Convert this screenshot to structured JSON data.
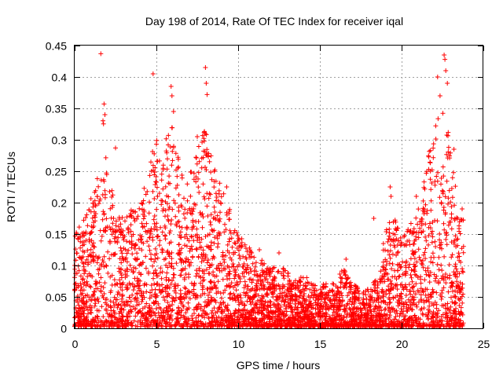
{
  "chart_data": {
    "type": "scatter",
    "title": "Day 198 of 2014, Rate Of TEC Index for receiver iqal",
    "xlabel": "GPS time / hours",
    "ylabel": "ROTI / TECUs",
    "xlim": [
      0,
      25
    ],
    "ylim": [
      0,
      0.45
    ],
    "xticks": [
      0,
      5,
      10,
      15,
      20,
      25
    ],
    "yticks": [
      0,
      0.05,
      0.1,
      0.15,
      0.2,
      0.25,
      0.3,
      0.35,
      0.4,
      0.45
    ],
    "xtick_labels": [
      "0",
      "5",
      "10",
      "15",
      "20",
      "25"
    ],
    "ytick_labels": [
      "0",
      "0.05",
      "0.1",
      "0.15",
      "0.2",
      "0.25",
      "0.3",
      "0.35",
      "0.4",
      "0.45"
    ],
    "grid": true,
    "marker": "+",
    "series": [
      {
        "name": "ROTI",
        "color": "#ff0000",
        "envelope": [
          [
            0.0,
            0.15
          ],
          [
            0.5,
            0.17
          ],
          [
            1.0,
            0.21
          ],
          [
            1.5,
            0.25
          ],
          [
            1.7,
            0.36
          ],
          [
            2.0,
            0.25
          ],
          [
            2.5,
            0.2
          ],
          [
            3.0,
            0.17
          ],
          [
            3.5,
            0.19
          ],
          [
            4.0,
            0.2
          ],
          [
            4.5,
            0.24
          ],
          [
            4.8,
            0.3
          ],
          [
            5.0,
            0.3
          ],
          [
            5.3,
            0.25
          ],
          [
            5.7,
            0.32
          ],
          [
            6.0,
            0.32
          ],
          [
            6.5,
            0.25
          ],
          [
            7.0,
            0.23
          ],
          [
            7.4,
            0.3
          ],
          [
            7.8,
            0.32
          ],
          [
            8.1,
            0.31
          ],
          [
            8.5,
            0.26
          ],
          [
            9.0,
            0.22
          ],
          [
            9.5,
            0.19
          ],
          [
            10.0,
            0.15
          ],
          [
            10.5,
            0.14
          ],
          [
            11.0,
            0.11
          ],
          [
            12.0,
            0.1
          ],
          [
            13.0,
            0.09
          ],
          [
            14.0,
            0.08
          ],
          [
            15.0,
            0.07
          ],
          [
            16.0,
            0.07
          ],
          [
            16.5,
            0.1
          ],
          [
            17.0,
            0.07
          ],
          [
            17.5,
            0.06
          ],
          [
            18.0,
            0.06
          ],
          [
            18.5,
            0.08
          ],
          [
            19.0,
            0.15
          ],
          [
            19.5,
            0.18
          ],
          [
            20.0,
            0.14
          ],
          [
            20.5,
            0.16
          ],
          [
            21.0,
            0.2
          ],
          [
            21.5,
            0.26
          ],
          [
            22.0,
            0.33
          ],
          [
            22.3,
            0.36
          ],
          [
            22.7,
            0.33
          ],
          [
            23.0,
            0.3
          ],
          [
            23.3,
            0.22
          ],
          [
            23.8,
            0.17
          ]
        ],
        "outliers": [
          [
            1.6,
            0.437
          ],
          [
            1.8,
            0.357
          ],
          [
            1.85,
            0.34
          ],
          [
            4.8,
            0.405
          ],
          [
            5.9,
            0.385
          ],
          [
            5.95,
            0.37
          ],
          [
            6.05,
            0.345
          ],
          [
            8.0,
            0.415
          ],
          [
            8.05,
            0.39
          ],
          [
            8.1,
            0.372
          ],
          [
            7.5,
            0.305
          ],
          [
            9.3,
            0.225
          ],
          [
            22.2,
            0.4
          ],
          [
            22.35,
            0.37
          ],
          [
            22.6,
            0.435
          ],
          [
            22.65,
            0.428
          ],
          [
            22.7,
            0.41
          ],
          [
            22.8,
            0.39
          ],
          [
            23.2,
            0.285
          ],
          [
            2.5,
            0.287
          ],
          [
            11.3,
            0.125
          ],
          [
            12.5,
            0.12
          ],
          [
            16.6,
            0.11
          ],
          [
            18.3,
            0.175
          ],
          [
            19.3,
            0.225
          ],
          [
            19.35,
            0.21
          ],
          [
            20.9,
            0.21
          ],
          [
            23.7,
            0.19
          ]
        ]
      }
    ]
  }
}
